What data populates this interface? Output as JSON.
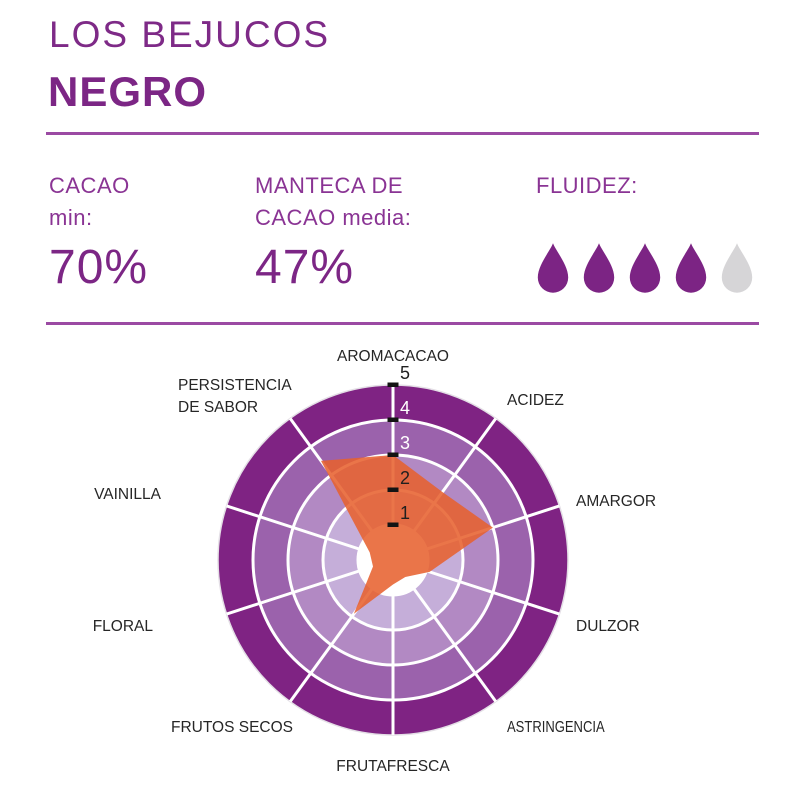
{
  "header": {
    "brand": "LOS BEJUCOS",
    "product": "NEGRO"
  },
  "specs": {
    "cacao": {
      "label": "CACAO",
      "sublabel": "min:",
      "value": "70%"
    },
    "manteca": {
      "label": "MANTECA DE",
      "sublabel": "CACAO media:",
      "value": "47%"
    },
    "fluidez": {
      "label": "FLUIDEZ:",
      "filled": 4,
      "total": 5
    }
  },
  "colors": {
    "title_purple": "#7c2685",
    "text_purple": "#8a3494",
    "divider_purple": "#9b4aa3",
    "droplet_filled": "#7c2484",
    "droplet_empty": "#d6d5d7",
    "label_black": "#262626"
  },
  "chart_data": {
    "type": "radar",
    "categories": [
      "AROMACACAO",
      "ACIDEZ",
      "AMARGOR",
      "DULZOR",
      "ASTRINGENCIA",
      "FRUTAFRESCA",
      "FRUTOS SECOS",
      "FLORAL",
      "VAINILLA",
      "PERSISTENCIA DE SABOR"
    ],
    "values": [
      3,
      2.4,
      3,
      1.1,
      0.6,
      0.7,
      1.9,
      0.6,
      0.7,
      3.5
    ],
    "scale": {
      "min": 0,
      "max": 5,
      "ticks": [
        1,
        2,
        3,
        4,
        5
      ]
    },
    "ring_colors": [
      "#ffffff",
      "#c5aed9",
      "#b289c3",
      "#9b62ac",
      "#7f2383"
    ],
    "ring_line_color": "#ffffff",
    "outer_stroke": "#e4dfe6",
    "series_color": "#e7602e",
    "series_opacity": 0.87,
    "tick_color": "#141414",
    "tick_label_colors": [
      "#1f1f1f",
      "#1f1f1f",
      "#ffffff",
      "#ffffff",
      "#1f1f1f"
    ]
  }
}
